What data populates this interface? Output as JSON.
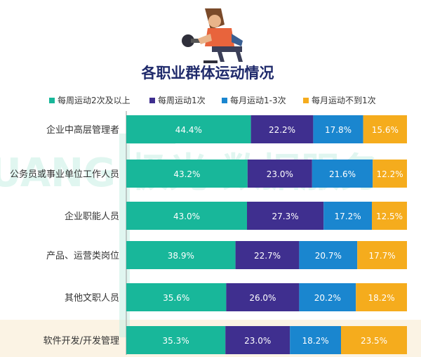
{
  "chart_data": {
    "type": "bar",
    "stacked": true,
    "orientation": "horizontal",
    "percent_stacked": true,
    "title": "各职业群体运动情况",
    "xlabel": "",
    "ylabel": "",
    "legend_position": "top",
    "grid": false,
    "categories": [
      "企业中高层管理者",
      "公务员或事业单位工作人员",
      "企业职能人员",
      "产品、运营类岗位",
      "其他文职人员",
      "软件开发/开发管理"
    ],
    "series": [
      {
        "name": "每周运动2次及以上",
        "color": "#18b79a",
        "values": [
          44.4,
          43.2,
          43.0,
          38.9,
          35.6,
          35.3
        ]
      },
      {
        "name": "每周运动1次",
        "color": "#3f2f8f",
        "values": [
          22.2,
          23.0,
          27.3,
          22.7,
          26.0,
          23.0
        ]
      },
      {
        "name": "每月运动1-3次",
        "color": "#1a86cf",
        "values": [
          17.8,
          21.6,
          17.2,
          20.7,
          20.2,
          18.2
        ]
      },
      {
        "name": "每月运动不到1次",
        "color": "#f5ac1d",
        "values": [
          15.6,
          12.2,
          12.5,
          17.7,
          18.2,
          23.5
        ]
      }
    ],
    "data_labels": [
      [
        "44.4%",
        "22.2%",
        "17.8%",
        "15.6%"
      ],
      [
        "43.2%",
        "23.0%",
        "21.6%",
        "12.2%"
      ],
      [
        "43.0%",
        "27.3%",
        "17.2%",
        "12.5%"
      ],
      [
        "38.9%",
        "22.7%",
        "20.7%",
        "17.7%"
      ],
      [
        "35.6%",
        "26.0%",
        "20.2%",
        "18.2%"
      ],
      [
        "35.3%",
        "23.0%",
        "18.2%",
        "23.5%"
      ]
    ],
    "highlighted_category": "软件开发/开发管理",
    "highlight_color": "#fbf3e4",
    "watermark_text": "IGUANG 极光 数据服务",
    "watermark_color": "#c7efe4",
    "illustration": "man-lifting-dumbbell-icon"
  }
}
